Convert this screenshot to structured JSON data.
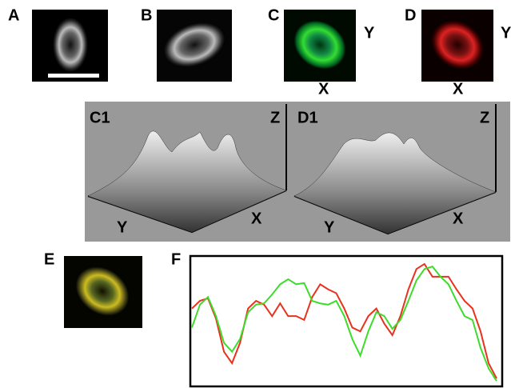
{
  "panels": {
    "a": "A",
    "b": "B",
    "c": "C",
    "d": "D",
    "c1": "C1",
    "d1": "D1",
    "e": "E",
    "f": "F"
  },
  "axes": {
    "c_y": "Y",
    "c_x": "X",
    "d_y": "Y",
    "d_x": "X",
    "c1_z": "Z",
    "c1_y": "Y",
    "c1_x": "X",
    "d1_z": "Z",
    "d1_y": "Y",
    "d1_x": "X"
  },
  "chart_data": {
    "type": "line",
    "x": [
      0,
      10,
      20,
      30,
      40,
      50,
      60,
      70,
      80,
      90,
      100,
      110,
      120,
      130,
      140,
      150,
      160,
      170,
      180,
      190,
      200,
      210,
      220,
      230,
      240,
      250,
      260,
      270,
      280,
      290,
      300,
      310,
      320,
      330,
      340,
      350,
      360,
      370,
      380
    ],
    "xlim": [
      0,
      385
    ],
    "ylim": [
      0,
      100
    ],
    "series": [
      {
        "color": "#e8321e",
        "values": [
          60,
          66,
          68,
          52,
          26,
          17,
          33,
          60,
          66,
          63,
          54,
          64,
          54,
          54,
          51,
          69,
          79,
          75,
          72,
          60,
          45,
          42,
          54,
          60,
          48,
          39,
          54,
          75,
          91,
          95,
          85,
          85,
          85,
          75,
          66,
          60,
          42,
          17,
          5
        ]
      },
      {
        "color": "#3ddc2a",
        "values": [
          45,
          63,
          69,
          54,
          33,
          26,
          36,
          57,
          63,
          64,
          71,
          79,
          83,
          79,
          80,
          66,
          64,
          63,
          66,
          54,
          36,
          23,
          42,
          57,
          54,
          44,
          51,
          66,
          82,
          91,
          93,
          85,
          79,
          66,
          54,
          51,
          29,
          13,
          3
        ]
      }
    ]
  }
}
